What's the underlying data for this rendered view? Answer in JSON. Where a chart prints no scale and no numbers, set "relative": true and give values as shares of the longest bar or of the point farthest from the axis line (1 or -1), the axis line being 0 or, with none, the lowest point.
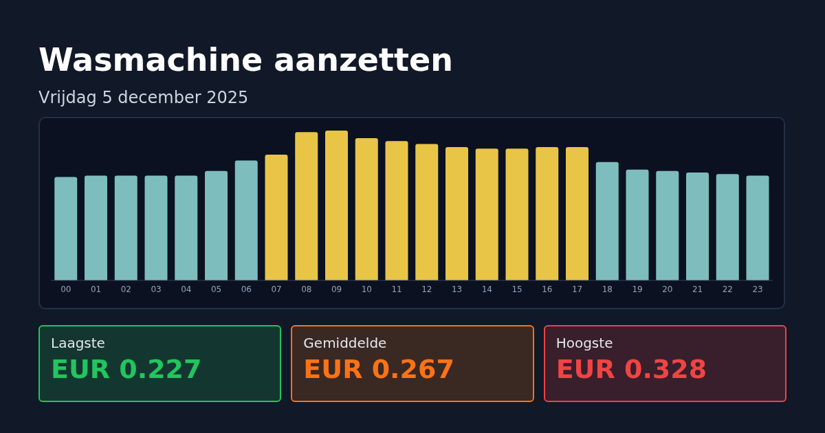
{
  "chart_data": [
    {
      "type": "bar",
      "title": "Wasmachine aanzetten",
      "subtitle": "Vrijdag 5 december 2025",
      "relative": true,
      "categories": [
        "00",
        "01",
        "02",
        "03",
        "04",
        "05",
        "06",
        "07",
        "08",
        "09",
        "10",
        "11",
        "12",
        "13",
        "14",
        "15",
        "16",
        "17",
        "18",
        "19",
        "20",
        "21",
        "22",
        "23"
      ],
      "values": [
        0.69,
        0.7,
        0.7,
        0.7,
        0.7,
        0.73,
        0.8,
        0.84,
        0.99,
        1,
        0.95,
        0.93,
        0.91,
        0.89,
        0.88,
        0.88,
        0.89,
        0.89,
        0.79,
        0.74,
        0.73,
        0.72,
        0.71,
        0.7
      ],
      "colors": [
        "#7dbdbd",
        "#7dbdbd",
        "#7dbdbd",
        "#7dbdbd",
        "#7dbdbd",
        "#7dbdbd",
        "#7dbdbd",
        "#e8c547",
        "#e8c547",
        "#e8c547",
        "#e8c547",
        "#e8c547",
        "#e8c547",
        "#e8c547",
        "#e8c547",
        "#e8c547",
        "#e8c547",
        "#e8c547",
        "#7dbdbd",
        "#7dbdbd",
        "#7dbdbd",
        "#7dbdbd",
        "#7dbdbd",
        "#7dbdbd"
      ]
    },
    {
      "type": "other",
      "categories": [
        "Laagste",
        "Gemiddelde",
        "Hoogste"
      ],
      "value_labels": [
        "EUR 0.227",
        "EUR 0.267",
        "EUR 0.328"
      ],
      "colors": [
        "#22c55e",
        "#f97316",
        "#ef4444"
      ]
    }
  ]
}
